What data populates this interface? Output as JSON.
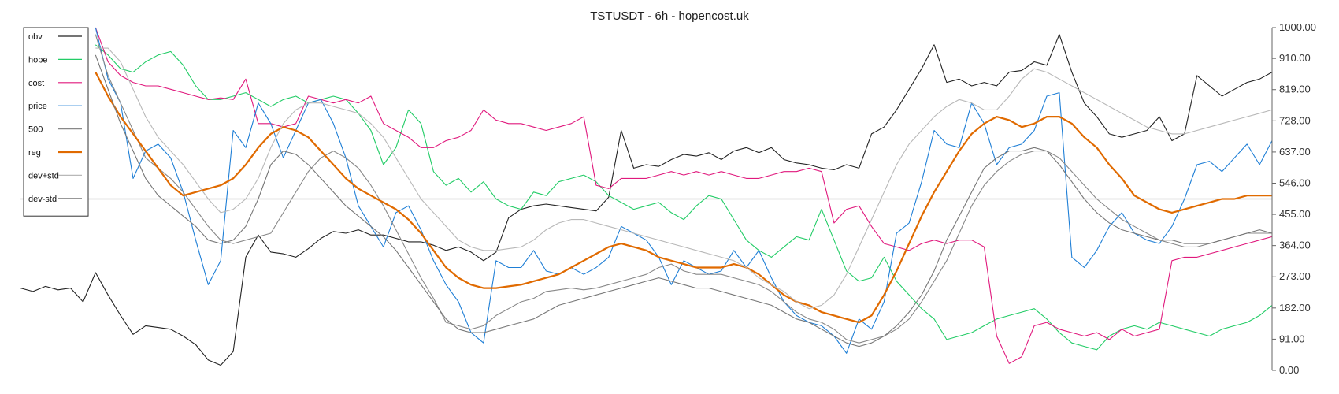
{
  "chart_data": {
    "type": "line",
    "title": "TSTUSDT - 6h - hopencost.uk",
    "xlabel": "",
    "ylabel": "",
    "ylim": [
      0,
      1000
    ],
    "yticks": [
      "1000.00",
      "910.00",
      "819.00",
      "728.00",
      "637.00",
      "546.00",
      "455.00",
      "364.00",
      "273.00",
      "182.00",
      "91.00",
      "0.00"
    ],
    "grid": false,
    "legend_position": "top-left",
    "hline": 500,
    "x": [
      0,
      2,
      4,
      6,
      8,
      10,
      12,
      14,
      16,
      18,
      20,
      22,
      24,
      26,
      28,
      30,
      32,
      34,
      36,
      38,
      40,
      42,
      44,
      46,
      48,
      50,
      52,
      54,
      56,
      58,
      60,
      62,
      64,
      66,
      68,
      70,
      72,
      74,
      76,
      78,
      80,
      82,
      84,
      86,
      88,
      90,
      92,
      94,
      96,
      98,
      100,
      102,
      104,
      106,
      108,
      110,
      112,
      114,
      116,
      118,
      120,
      122,
      124,
      126,
      128,
      130,
      132,
      134,
      136,
      138,
      140,
      142,
      144,
      146,
      148,
      150,
      152,
      154,
      156,
      158,
      160,
      162,
      164,
      166,
      168,
      170,
      172,
      174,
      176,
      178,
      180,
      182,
      184,
      186,
      188,
      190,
      192,
      194,
      196,
      198,
      200
    ],
    "series": [
      {
        "name": "obv",
        "color": "#222222",
        "width": 1.1,
        "values": [
          240,
          230,
          245,
          235,
          240,
          200,
          285,
          220,
          160,
          105,
          130,
          125,
          120,
          100,
          75,
          30,
          15,
          55,
          330,
          395,
          345,
          340,
          330,
          355,
          385,
          405,
          400,
          410,
          395,
          395,
          385,
          375,
          375,
          365,
          350,
          360,
          345,
          320,
          345,
          445,
          470,
          480,
          485,
          480,
          475,
          470,
          465,
          505,
          700,
          590,
          600,
          595,
          615,
          630,
          625,
          635,
          615,
          640,
          650,
          635,
          650,
          615,
          605,
          600,
          590,
          585,
          600,
          590,
          690,
          710,
          760,
          820,
          880,
          950,
          840,
          850,
          830,
          840,
          830,
          870,
          875,
          900,
          890,
          980,
          870,
          780,
          740,
          690,
          680,
          690,
          700,
          740,
          670,
          690,
          860,
          830,
          800,
          820,
          840,
          850,
          870
        ]
      },
      {
        "name": "hope",
        "color": "#22cc66",
        "width": 1.1,
        "values": [
          null,
          null,
          null,
          null,
          null,
          null,
          950,
          920,
          880,
          870,
          900,
          920,
          930,
          890,
          830,
          790,
          790,
          800,
          810,
          790,
          770,
          790,
          800,
          780,
          790,
          800,
          790,
          750,
          700,
          600,
          650,
          760,
          720,
          580,
          540,
          560,
          520,
          550,
          500,
          480,
          470,
          520,
          510,
          550,
          560,
          570,
          550,
          510,
          490,
          470,
          480,
          490,
          460,
          440,
          480,
          510,
          500,
          440,
          380,
          350,
          330,
          360,
          390,
          380,
          470,
          380,
          290,
          260,
          270,
          330,
          260,
          220,
          180,
          150,
          90,
          100,
          110,
          130,
          150,
          160,
          170,
          180,
          150,
          110,
          80,
          70,
          60,
          100,
          120,
          130,
          120,
          140,
          130,
          120,
          110,
          100,
          120,
          130,
          140,
          160,
          190
        ]
      },
      {
        "name": "cost",
        "color": "#e0197d",
        "width": 1.1,
        "values": [
          null,
          null,
          null,
          null,
          null,
          null,
          1000,
          900,
          860,
          840,
          830,
          830,
          820,
          810,
          800,
          790,
          795,
          790,
          850,
          720,
          720,
          710,
          720,
          800,
          790,
          780,
          790,
          780,
          800,
          720,
          700,
          680,
          650,
          650,
          670,
          680,
          700,
          760,
          730,
          720,
          720,
          710,
          700,
          710,
          720,
          740,
          540,
          530,
          560,
          560,
          560,
          570,
          580,
          570,
          580,
          570,
          580,
          570,
          560,
          560,
          570,
          580,
          580,
          590,
          580,
          430,
          470,
          480,
          420,
          370,
          360,
          350,
          370,
          380,
          370,
          380,
          380,
          360,
          100,
          20,
          40,
          130,
          140,
          120,
          110,
          100,
          110,
          90,
          120,
          100,
          110,
          120,
          320,
          330,
          330,
          340,
          350,
          360,
          370,
          380,
          390
        ]
      },
      {
        "name": "price",
        "color": "#1f7fd6",
        "width": 1.1,
        "values": [
          null,
          null,
          null,
          null,
          null,
          null,
          1000,
          850,
          780,
          560,
          640,
          660,
          620,
          520,
          380,
          250,
          320,
          700,
          650,
          780,
          720,
          620,
          700,
          780,
          790,
          720,
          620,
          480,
          420,
          360,
          460,
          480,
          410,
          320,
          250,
          200,
          110,
          80,
          320,
          300,
          300,
          350,
          290,
          280,
          300,
          280,
          300,
          330,
          420,
          400,
          380,
          330,
          250,
          320,
          300,
          280,
          290,
          350,
          300,
          350,
          270,
          200,
          160,
          140,
          130,
          100,
          50,
          150,
          120,
          200,
          400,
          430,
          550,
          700,
          660,
          650,
          780,
          720,
          600,
          650,
          660,
          700,
          800,
          810,
          330,
          300,
          350,
          420,
          460,
          400,
          380,
          370,
          420,
          500,
          600,
          610,
          580,
          620,
          660,
          600,
          670
        ]
      },
      {
        "name": "500",
        "color": "#888888",
        "width": 1.1,
        "values": [
          null,
          null,
          null,
          null,
          null,
          null,
          980,
          860,
          780,
          700,
          620,
          590,
          560,
          520,
          470,
          420,
          380,
          370,
          380,
          390,
          400,
          460,
          520,
          580,
          620,
          640,
          620,
          590,
          540,
          480,
          410,
          340,
          270,
          210,
          140,
          130,
          120,
          130,
          160,
          180,
          200,
          210,
          230,
          235,
          240,
          235,
          240,
          250,
          260,
          270,
          280,
          300,
          310,
          290,
          280,
          280,
          280,
          270,
          260,
          250,
          230,
          200,
          170,
          150,
          140,
          120,
          90,
          80,
          90,
          100,
          120,
          150,
          200,
          260,
          320,
          400,
          480,
          540,
          580,
          610,
          630,
          640,
          640,
          620,
          580,
          540,
          500,
          470,
          440,
          420,
          400,
          380,
          370,
          360,
          360,
          370,
          380,
          390,
          400,
          400,
          400
        ]
      },
      {
        "name": "reg",
        "color": "#e06a00",
        "width": 2.2,
        "values": [
          null,
          null,
          null,
          null,
          null,
          null,
          870,
          800,
          740,
          690,
          640,
          590,
          540,
          510,
          520,
          530,
          540,
          560,
          600,
          650,
          690,
          710,
          700,
          680,
          640,
          600,
          560,
          530,
          510,
          490,
          470,
          440,
          400,
          350,
          300,
          270,
          250,
          240,
          240,
          245,
          250,
          260,
          270,
          280,
          300,
          320,
          340,
          360,
          370,
          360,
          350,
          330,
          320,
          310,
          300,
          300,
          300,
          310,
          300,
          280,
          250,
          220,
          200,
          190,
          170,
          160,
          150,
          140,
          160,
          220,
          290,
          370,
          450,
          520,
          580,
          640,
          690,
          720,
          740,
          730,
          710,
          720,
          740,
          740,
          720,
          680,
          650,
          600,
          560,
          510,
          490,
          470,
          460,
          470,
          480,
          490,
          500,
          500,
          510,
          510,
          510
        ]
      },
      {
        "name": "dev+std",
        "color": "#b8b8b8",
        "width": 1.1,
        "values": [
          null,
          null,
          null,
          null,
          null,
          null,
          940,
          940,
          900,
          820,
          740,
          680,
          640,
          600,
          550,
          500,
          460,
          470,
          500,
          560,
          650,
          720,
          760,
          780,
          780,
          770,
          760,
          750,
          720,
          680,
          620,
          560,
          500,
          460,
          420,
          380,
          360,
          350,
          350,
          355,
          360,
          380,
          410,
          430,
          440,
          440,
          430,
          420,
          410,
          400,
          390,
          380,
          370,
          360,
          350,
          340,
          330,
          320,
          300,
          270,
          250,
          230,
          200,
          180,
          190,
          220,
          280,
          360,
          440,
          520,
          600,
          660,
          700,
          740,
          770,
          790,
          780,
          760,
          760,
          800,
          850,
          880,
          870,
          850,
          830,
          810,
          790,
          770,
          750,
          730,
          710,
          700,
          690,
          690,
          700,
          710,
          720,
          730,
          740,
          750,
          760
        ]
      },
      {
        "name": "dev-std",
        "color": "#777777",
        "width": 1.1,
        "values": [
          null,
          null,
          null,
          null,
          null,
          null,
          920,
          820,
          720,
          640,
          560,
          510,
          480,
          450,
          420,
          380,
          370,
          380,
          420,
          500,
          600,
          640,
          630,
          600,
          560,
          520,
          480,
          450,
          420,
          390,
          350,
          300,
          250,
          200,
          150,
          120,
          110,
          110,
          120,
          130,
          140,
          150,
          170,
          190,
          200,
          210,
          220,
          230,
          240,
          250,
          260,
          270,
          260,
          250,
          240,
          240,
          230,
          220,
          210,
          200,
          190,
          170,
          150,
          140,
          120,
          100,
          80,
          70,
          80,
          100,
          130,
          170,
          220,
          290,
          380,
          450,
          520,
          590,
          620,
          640,
          640,
          650,
          640,
          600,
          550,
          500,
          460,
          430,
          410,
          400,
          390,
          380,
          380,
          370,
          370,
          370,
          380,
          390,
          400,
          410,
          400
        ]
      }
    ]
  }
}
